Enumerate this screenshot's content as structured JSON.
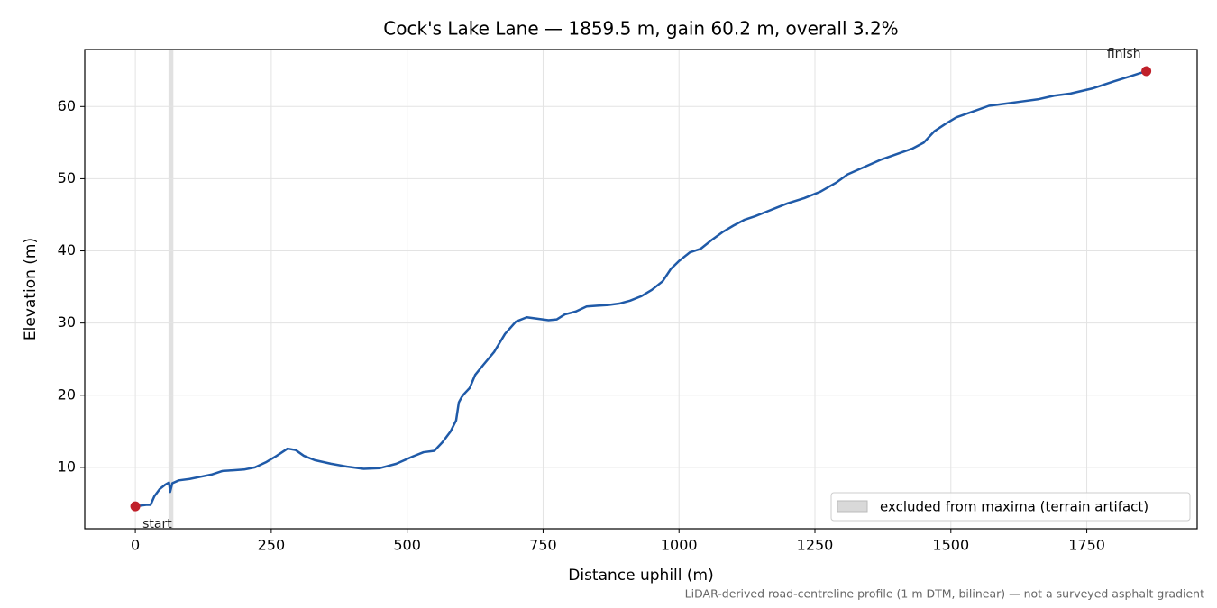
{
  "chart_data": {
    "type": "line",
    "title": "Cock's Lake Lane — 1859.5 m, gain 60.2 m, overall 3.2%",
    "xlabel": "Distance uphill (m)",
    "ylabel": "Elevation (m)",
    "footnote": "LiDAR-derived road-centreline profile (1 m DTM, bilinear) — not a surveyed asphalt gradient",
    "annotations": [
      "start",
      "finish"
    ],
    "excluded": {
      "label": "excluded from maxima (terrain artifact)",
      "range": [
        61,
        70
      ],
      "color": "#d9d9d9"
    },
    "legend": "lower right",
    "color": "#1f5aa8",
    "marker_color": "#c0202a",
    "grid": true,
    "xlim": [
      -93,
      1953
    ],
    "ylim": [
      1.5,
      67.9
    ],
    "xticks": [
      0,
      250,
      500,
      750,
      1000,
      1250,
      1500,
      1750
    ],
    "yticks": [
      10,
      20,
      30,
      40,
      50,
      60
    ],
    "x": [
      0,
      20,
      28,
      35,
      45,
      55,
      62,
      64,
      68,
      80,
      100,
      120,
      140,
      160,
      180,
      200,
      220,
      240,
      260,
      280,
      295,
      310,
      330,
      360,
      390,
      420,
      450,
      480,
      510,
      530,
      550,
      565,
      580,
      590,
      595,
      600,
      605,
      615,
      625,
      640,
      660,
      680,
      700,
      720,
      740,
      760,
      775,
      790,
      810,
      830,
      850,
      870,
      890,
      910,
      930,
      950,
      970,
      985,
      1000,
      1020,
      1040,
      1060,
      1080,
      1100,
      1120,
      1140,
      1160,
      1180,
      1200,
      1230,
      1260,
      1290,
      1310,
      1340,
      1370,
      1400,
      1430,
      1450,
      1470,
      1490,
      1510,
      1540,
      1570,
      1600,
      1630,
      1660,
      1690,
      1720,
      1760,
      1800,
      1830,
      1859.5
    ],
    "values": [
      4.6,
      4.8,
      4.8,
      6,
      7,
      7.6,
      7.9,
      6.6,
      7.8,
      8.2,
      8.4,
      8.7,
      9,
      9.5,
      9.6,
      9.7,
      10,
      10.7,
      11.6,
      12.6,
      12.4,
      11.6,
      11,
      10.5,
      10.1,
      9.8,
      9.9,
      10.5,
      11.5,
      12.1,
      12.3,
      13.5,
      15,
      16.5,
      19,
      19.7,
      20.2,
      21,
      22.8,
      24.2,
      26,
      28.5,
      30.2,
      30.8,
      30.6,
      30.4,
      30.5,
      31.2,
      31.6,
      32.3,
      32.4,
      32.5,
      32.7,
      33.1,
      33.7,
      34.6,
      35.8,
      37.5,
      38.6,
      39.8,
      40.3,
      41.5,
      42.6,
      43.5,
      44.3,
      44.8,
      45.4,
      46,
      46.6,
      47.3,
      48.2,
      49.5,
      50.6,
      51.6,
      52.6,
      53.4,
      54.2,
      55,
      56.6,
      57.6,
      58.5,
      59.3,
      60.1,
      60.4,
      60.7,
      61,
      61.5,
      61.8,
      62.5,
      63.5,
      64.2,
      64.9
    ]
  }
}
